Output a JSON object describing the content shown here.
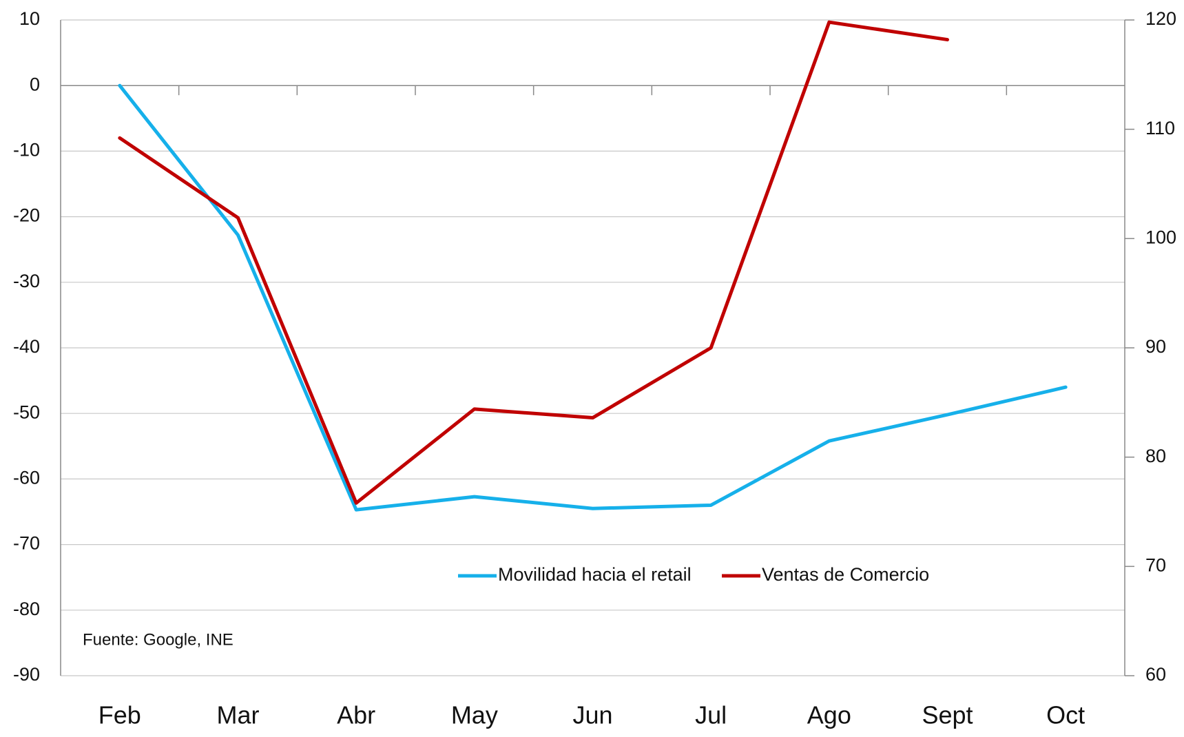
{
  "chart_data": {
    "type": "line",
    "categories": [
      "Feb",
      "Mar",
      "Abr",
      "May",
      "Jun",
      "Jul",
      "Ago",
      "Sept",
      "Oct"
    ],
    "series": [
      {
        "name": "Movilidad hacia el retail",
        "color": "#16b0ea",
        "axis": "y",
        "values": [
          0,
          -22.8,
          -64.7,
          -62.7,
          -64.5,
          -64,
          -54.2,
          -50.2,
          -46
        ]
      },
      {
        "name": "Ventas de Comercio",
        "color": "#c00000",
        "axis": "y2",
        "values": [
          109.2,
          101.9,
          75.8,
          84.4,
          83.6,
          90,
          119.8,
          118.2,
          null
        ]
      }
    ],
    "ylim": [
      -90,
      10
    ],
    "yticks": [
      -90,
      -80,
      -70,
      -60,
      -50,
      -40,
      -30,
      -20,
      -10,
      0,
      10
    ],
    "y2lim": [
      60,
      120
    ],
    "y2ticks": [
      60,
      70,
      80,
      90,
      100,
      110,
      120
    ],
    "grid": true,
    "legend": "center",
    "annotation": "Fuente: Google, INE"
  }
}
